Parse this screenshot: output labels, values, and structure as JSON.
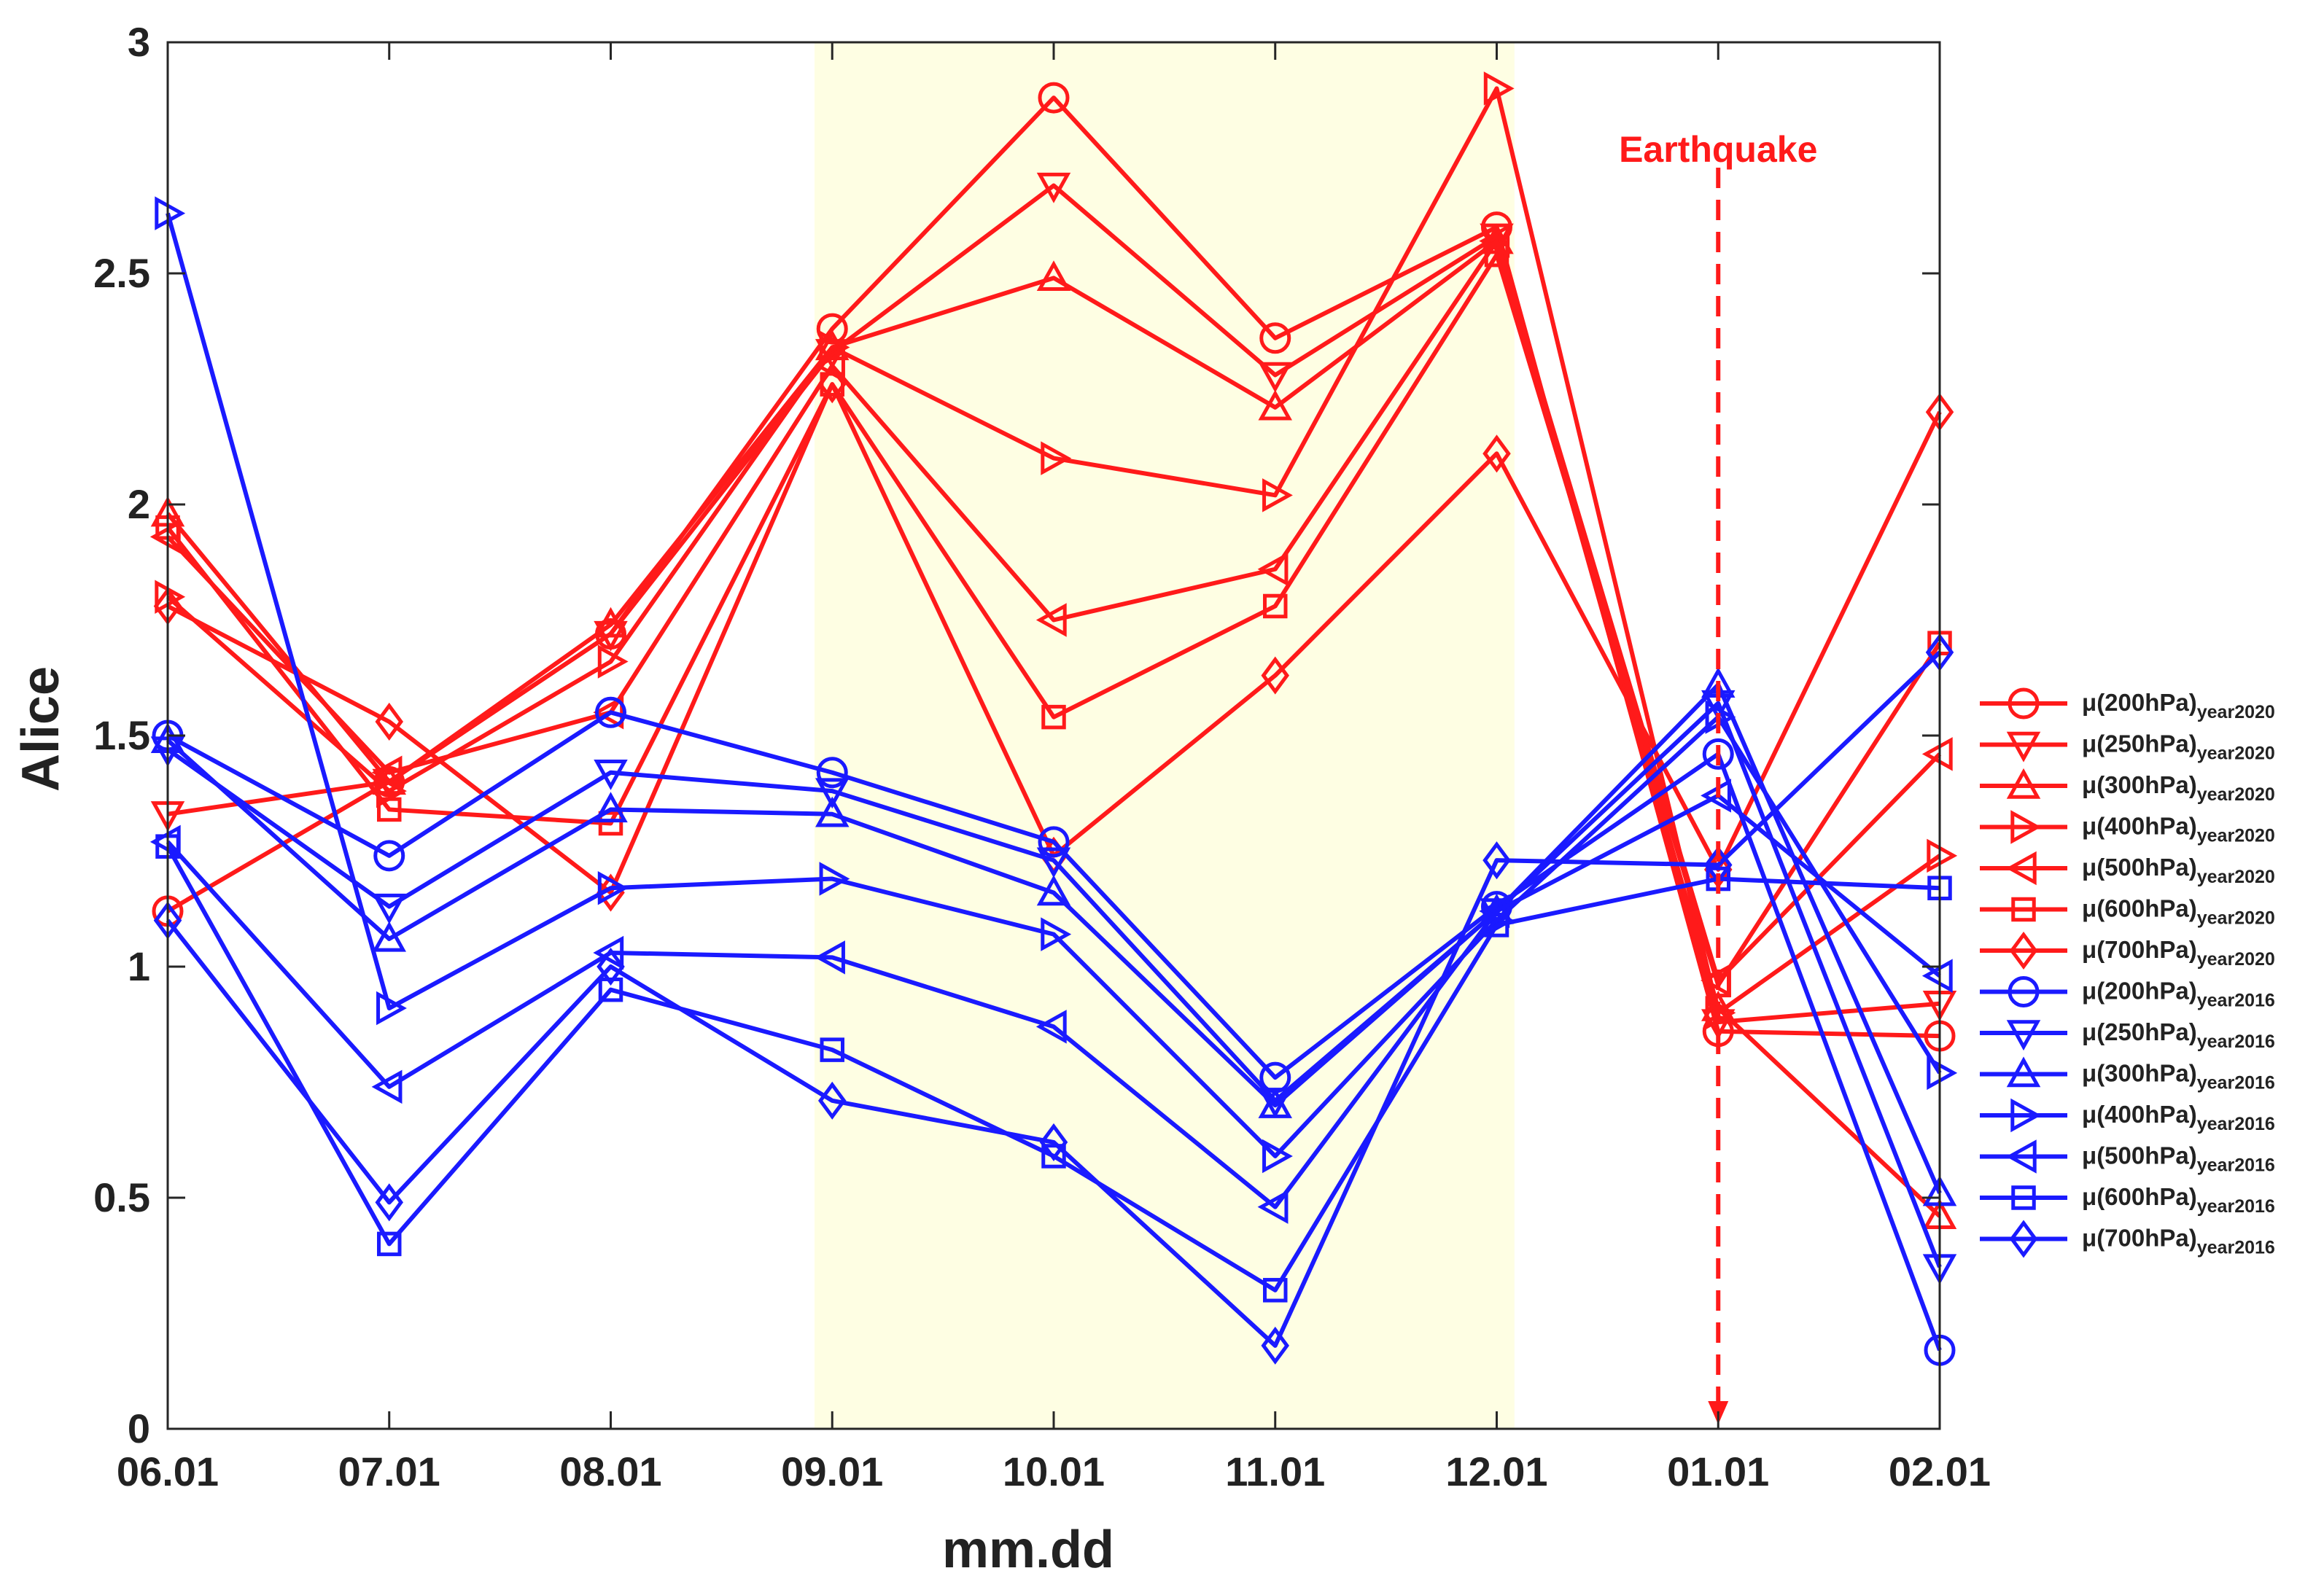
{
  "chart_data": {
    "type": "line",
    "title": "",
    "xlabel": "mm.dd",
    "ylabel": "Alice",
    "categories": [
      "06.01",
      "07.01",
      "08.01",
      "09.01",
      "10.01",
      "11.01",
      "12.01",
      "01.01",
      "02.01"
    ],
    "ylim": [
      0,
      3
    ],
    "yticks": [
      "0",
      "0.5",
      "1",
      "1.5",
      "2",
      "2.5",
      "3"
    ],
    "highlight_range": {
      "from": "08.93",
      "to": "12.07",
      "from_index": 2.92,
      "to_index": 6.08,
      "color": "#fefee3"
    },
    "annotation": {
      "text": "Earthquake",
      "x_index": 7,
      "color": "#ff1a1a"
    },
    "colors": {
      "year2020": "#ff1a1a",
      "year2016": "#1a1aff"
    },
    "series": [
      {
        "name": "μ(200hPa)",
        "subscript": "year2020",
        "group": "year2020",
        "marker": "circle",
        "values": [
          1.12,
          1.4,
          1.72,
          2.38,
          2.88,
          2.36,
          2.6,
          0.86,
          0.85
        ]
      },
      {
        "name": "μ(250hPa)",
        "subscript": "year2020",
        "group": "year2020",
        "marker": "triangle-down",
        "values": [
          1.33,
          1.4,
          1.72,
          2.33,
          2.69,
          2.28,
          2.58,
          0.88,
          0.92
        ]
      },
      {
        "name": "μ(300hPa)",
        "subscript": "year2020",
        "group": "year2020",
        "marker": "triangle-up",
        "values": [
          1.98,
          1.4,
          1.74,
          2.34,
          2.49,
          2.21,
          2.57,
          0.91,
          0.46
        ]
      },
      {
        "name": "μ(400hPa)",
        "subscript": "year2020",
        "group": "year2020",
        "marker": "triangle-right",
        "values": [
          1.8,
          1.38,
          1.66,
          2.34,
          2.1,
          2.02,
          2.9,
          0.9,
          1.24
        ]
      },
      {
        "name": "μ(500hPa)",
        "subscript": "year2020",
        "group": "year2020",
        "marker": "triangle-left",
        "values": [
          1.93,
          1.42,
          1.55,
          2.3,
          1.75,
          1.86,
          2.57,
          0.97,
          1.46
        ]
      },
      {
        "name": "μ(600hPa)",
        "subscript": "year2020",
        "group": "year2020",
        "marker": "square",
        "values": [
          1.95,
          1.34,
          1.31,
          2.26,
          1.54,
          1.78,
          2.54,
          0.96,
          1.7
        ]
      },
      {
        "name": "μ(700hPa)",
        "subscript": "year2020",
        "group": "year2020",
        "marker": "diamond",
        "values": [
          1.78,
          1.53,
          1.16,
          2.26,
          1.24,
          1.63,
          2.11,
          1.21,
          2.2
        ]
      },
      {
        "name": "μ(200hPa)",
        "subscript": "year2016",
        "group": "year2016",
        "marker": "circle",
        "values": [
          1.5,
          1.24,
          1.55,
          1.42,
          1.27,
          0.76,
          1.13,
          1.46,
          0.17
        ]
      },
      {
        "name": "μ(250hPa)",
        "subscript": "year2016",
        "group": "year2016",
        "marker": "triangle-down",
        "values": [
          1.47,
          1.13,
          1.42,
          1.38,
          1.23,
          0.71,
          1.12,
          1.57,
          0.35
        ]
      },
      {
        "name": "μ(300hPa)",
        "subscript": "year2016",
        "group": "year2016",
        "marker": "triangle-up",
        "values": [
          1.49,
          1.06,
          1.34,
          1.33,
          1.16,
          0.7,
          1.12,
          1.61,
          0.51
        ]
      },
      {
        "name": "μ(400hPa)",
        "subscript": "year2016",
        "group": "year2016",
        "marker": "triangle-right",
        "values": [
          2.63,
          0.91,
          1.17,
          1.19,
          1.07,
          0.59,
          1.1,
          1.54,
          0.77
        ]
      },
      {
        "name": "μ(500hPa)",
        "subscript": "year2016",
        "group": "year2016",
        "marker": "triangle-left",
        "values": [
          1.27,
          0.74,
          1.03,
          1.02,
          0.87,
          0.48,
          1.12,
          1.37,
          0.98
        ]
      },
      {
        "name": "μ(600hPa)",
        "subscript": "year2016",
        "group": "year2016",
        "marker": "square",
        "values": [
          1.26,
          0.4,
          0.95,
          0.82,
          0.59,
          0.3,
          1.09,
          1.19,
          1.17
        ]
      },
      {
        "name": "μ(700hPa)",
        "subscript": "year2016",
        "group": "year2016",
        "marker": "diamond",
        "values": [
          1.1,
          0.49,
          1.0,
          0.71,
          0.62,
          0.18,
          1.23,
          1.22,
          1.68
        ]
      }
    ]
  }
}
